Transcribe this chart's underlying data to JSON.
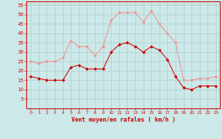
{
  "hours": [
    0,
    1,
    2,
    3,
    4,
    5,
    6,
    7,
    8,
    9,
    10,
    11,
    12,
    13,
    14,
    15,
    16,
    17,
    18,
    19,
    20,
    21,
    22,
    23
  ],
  "wind_avg": [
    17,
    16,
    15,
    15,
    15,
    22,
    23,
    21,
    21,
    21,
    30,
    34,
    35,
    33,
    30,
    33,
    31,
    26,
    17,
    11,
    10,
    12,
    12,
    12
  ],
  "wind_gust": [
    25,
    24,
    25,
    25,
    27,
    36,
    33,
    33,
    28,
    33,
    47,
    51,
    51,
    51,
    46,
    52,
    45,
    40,
    35,
    15,
    15,
    16,
    16,
    17
  ],
  "bg_color": "#cce8e8",
  "grid_color": "#aacccc",
  "avg_color": "#cc0000",
  "gust_color": "#f09090",
  "xlabel": "Vent moyen/en rafales ( km/h )",
  "xlabel_color": "#cc0000",
  "tick_color": "#cc0000",
  "ylim": [
    0,
    57
  ],
  "yticks": [
    5,
    10,
    15,
    20,
    25,
    30,
    35,
    40,
    45,
    50,
    55
  ],
  "xlim": [
    -0.5,
    23.5
  ],
  "spine_color": "#cc0000"
}
